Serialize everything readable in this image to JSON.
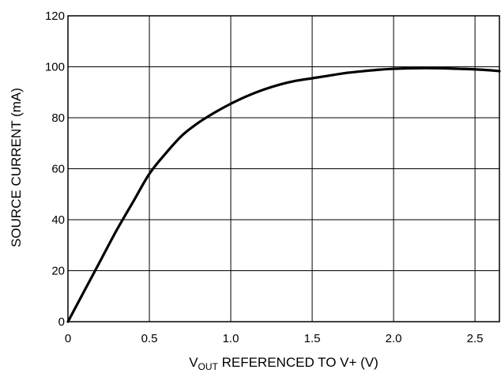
{
  "chart_data": {
    "type": "line",
    "xlabel": {
      "main": "V",
      "subscript": "OUT",
      "rest": " REFERENCED TO V+ (V)"
    },
    "ylabel": "SOURCE CURRENT (mA)",
    "xlim": [
      0,
      2.65
    ],
    "ylim": [
      0,
      120
    ],
    "x_ticks": [
      0,
      0.5,
      1.0,
      1.5,
      2.0,
      2.5
    ],
    "x_tick_labels": [
      "0",
      "0.5",
      "1.0",
      "1.5",
      "2.0",
      "2.5"
    ],
    "y_ticks": [
      0,
      20,
      40,
      60,
      80,
      100,
      120
    ],
    "y_tick_labels": [
      "0",
      "20",
      "40",
      "60",
      "80",
      "100",
      "120"
    ],
    "grid": true,
    "series": [
      {
        "color": "#000000",
        "x": [
          0,
          0.1,
          0.2,
          0.3,
          0.4,
          0.5,
          0.6,
          0.7,
          0.8,
          0.9,
          1.0,
          1.1,
          1.2,
          1.3,
          1.4,
          1.5,
          1.6,
          1.7,
          1.8,
          1.9,
          2.0,
          2.1,
          2.2,
          2.3,
          2.4,
          2.5,
          2.6,
          2.65
        ],
        "values": [
          0,
          12,
          24,
          36,
          47,
          58,
          66,
          73,
          78,
          82,
          85.5,
          88.5,
          91,
          93,
          94.5,
          95.5,
          96.5,
          97.5,
          98.2,
          98.8,
          99.2,
          99.4,
          99.5,
          99.4,
          99.2,
          99,
          98.6,
          98.3
        ]
      }
    ]
  }
}
